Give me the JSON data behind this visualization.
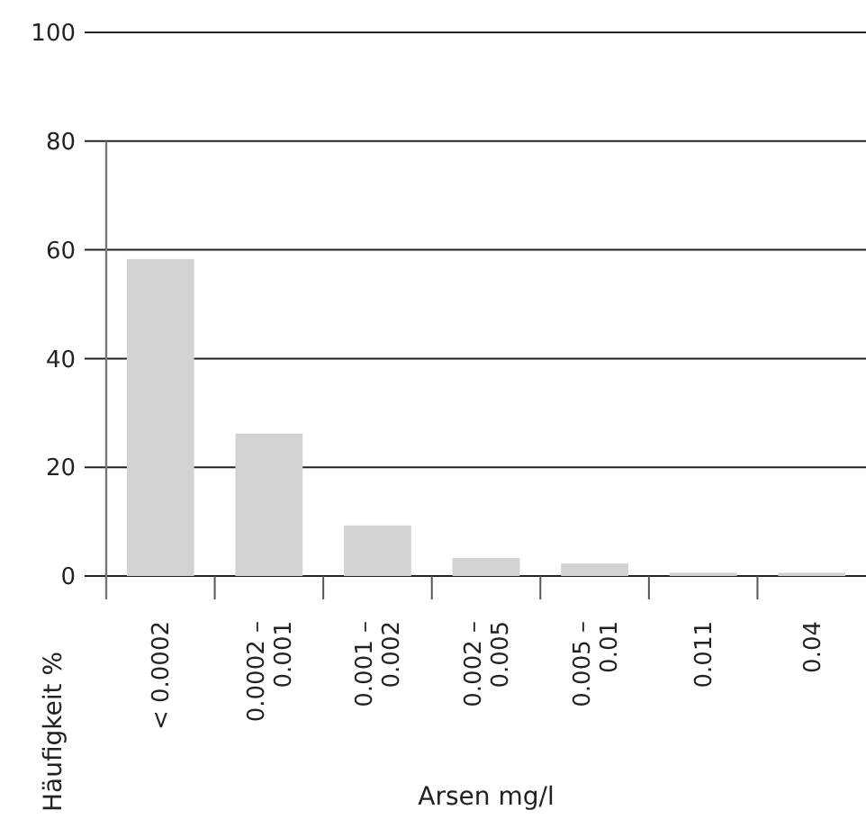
{
  "chart_data": {
    "type": "bar",
    "xlabel": "Arsen mg/l",
    "ylabel": "Häufigkeit %",
    "categories": [
      "< 0.0002",
      "0.0002 –\n0.001",
      "0.001 –\n0.002",
      "0.002 –\n0.005",
      "0.005 –\n0.01",
      "0.011",
      "0.04"
    ],
    "values": [
      58.3,
      26.2,
      9.3,
      3.3,
      2.3,
      0.6,
      0.6
    ],
    "color": "#d1d2d4",
    "ylim": [
      0,
      100
    ],
    "yticks": [
      0,
      20,
      40,
      60,
      80,
      100
    ],
    "grid": "y"
  }
}
